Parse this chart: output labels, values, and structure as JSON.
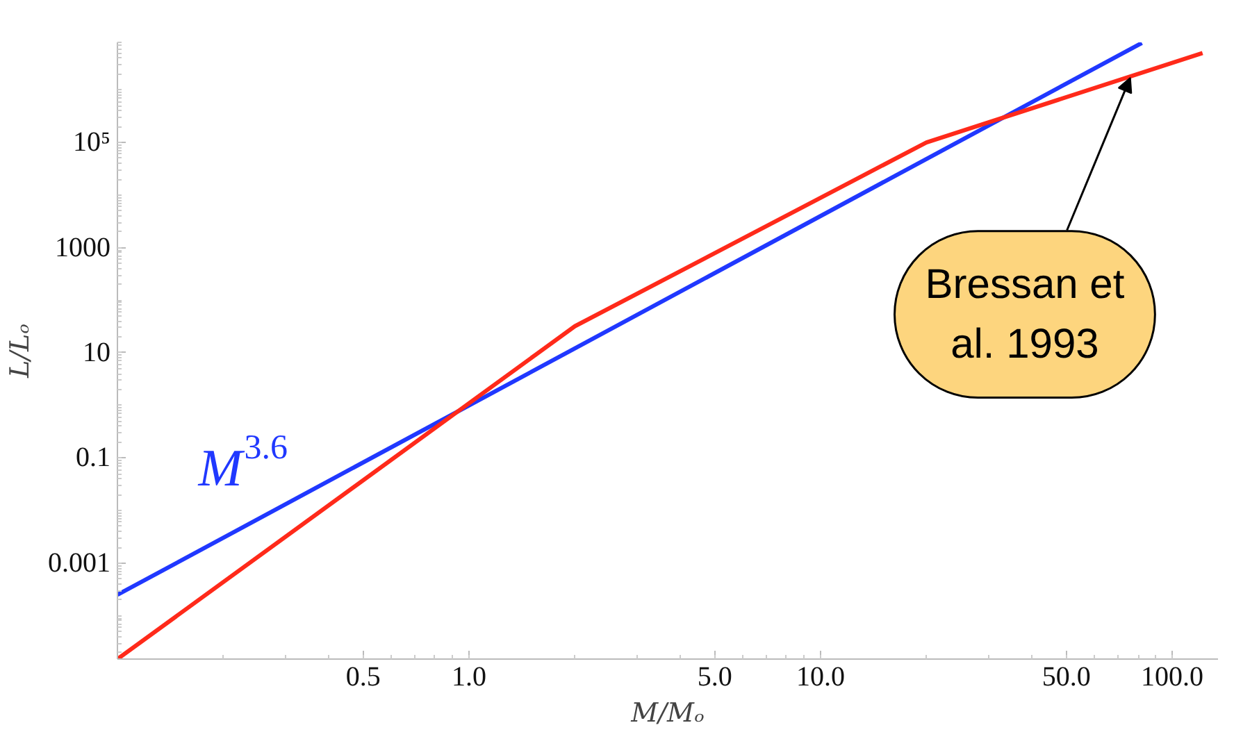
{
  "chart_data": {
    "type": "line",
    "xlabel": "M/Mₒ",
    "ylabel": "L/Lₒ",
    "log": "xy",
    "grid": false,
    "xlim": [
      0.1,
      135
    ],
    "ylim": [
      1.5e-05,
      8000000
    ],
    "xticks": [
      0.5,
      {
        "value": 1,
        "label": "1.0"
      },
      {
        "value": 5,
        "label": "5.0"
      },
      {
        "value": 10,
        "label": "10.0"
      },
      {
        "value": 50,
        "label": "50.0"
      },
      {
        "value": 100,
        "label": "100.0"
      }
    ],
    "yticks": [
      0.001,
      0.1,
      10,
      1000,
      {
        "value": 100000,
        "label": "10⁵"
      }
    ],
    "series": [
      {
        "name": "M$^{3.6}$",
        "color": "#2038ff",
        "x": [
          0.1,
          82
        ],
        "values": [
          0.00025,
          7800000
        ]
      },
      {
        "color": "#ff2a1a",
        "x": [
          0.1,
          2,
          20,
          122
        ],
        "values": [
          1.5e-05,
          32,
          100000,
          5000000
        ]
      }
    ],
    "annotations": [
      {
        "text": "Bressan et al. 1993",
        "x": 76,
        "y": 1700000
      }
    ]
  }
}
